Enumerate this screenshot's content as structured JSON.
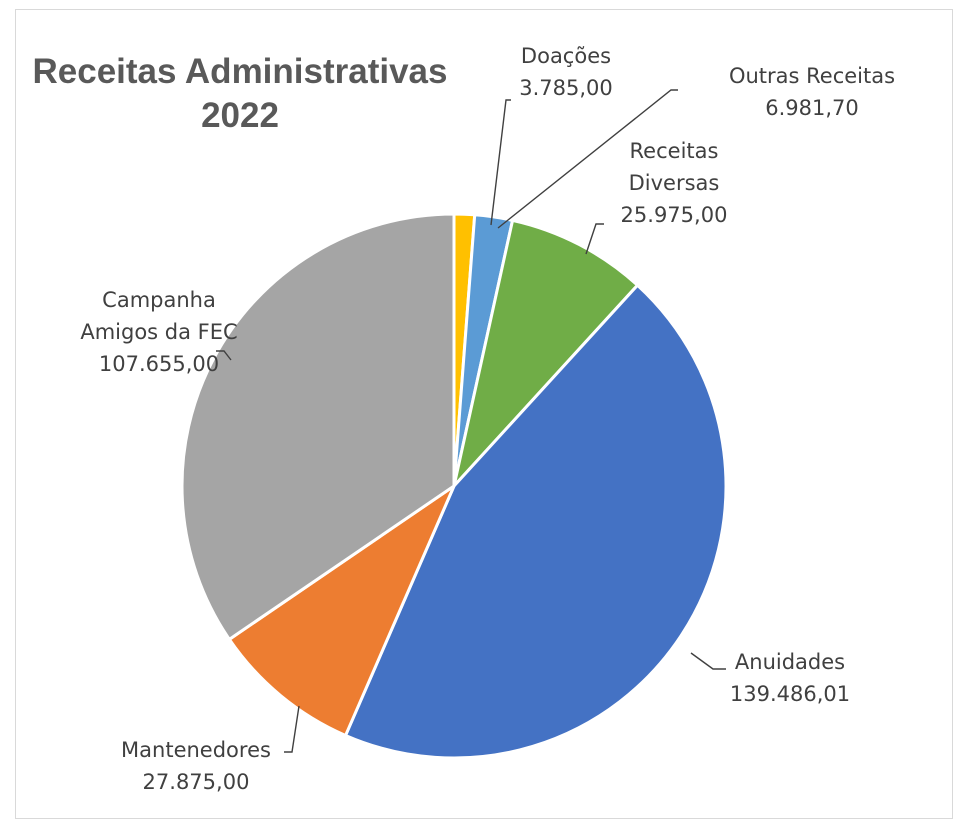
{
  "chart_data": {
    "type": "pie",
    "title_lines": [
      "Receitas Administrativas",
      "2022"
    ],
    "slices": [
      {
        "name": "Doações",
        "value": 3785.0,
        "value_label": "3.785,00",
        "color": "#FFC000"
      },
      {
        "name": "Outras Receitas",
        "value": 6981.7,
        "value_label": "6.981,70",
        "color": "#5B9BD5"
      },
      {
        "name": "Receitas Diversas",
        "value": 25975.0,
        "value_label": "25.975,00",
        "color": "#70AD47"
      },
      {
        "name": "Anuidades",
        "value": 139486.01,
        "value_label": "139.486,01",
        "color": "#4472C4"
      },
      {
        "name": "Mantenedores",
        "value": 27875.0,
        "value_label": "27.875,00",
        "color": "#ED7D31"
      },
      {
        "name": "Campanha Amigos da FEC",
        "value": 107655.0,
        "value_label": "107.655,00",
        "color": "#A5A5A5"
      }
    ],
    "label_lines": [
      [
        "Doações"
      ],
      [
        "Outras Receitas"
      ],
      [
        "Receitas",
        "Diversas"
      ],
      [
        "Anuidades"
      ],
      [
        "Mantenedores"
      ],
      [
        "Campanha",
        "Amigos da FEC"
      ]
    ]
  }
}
